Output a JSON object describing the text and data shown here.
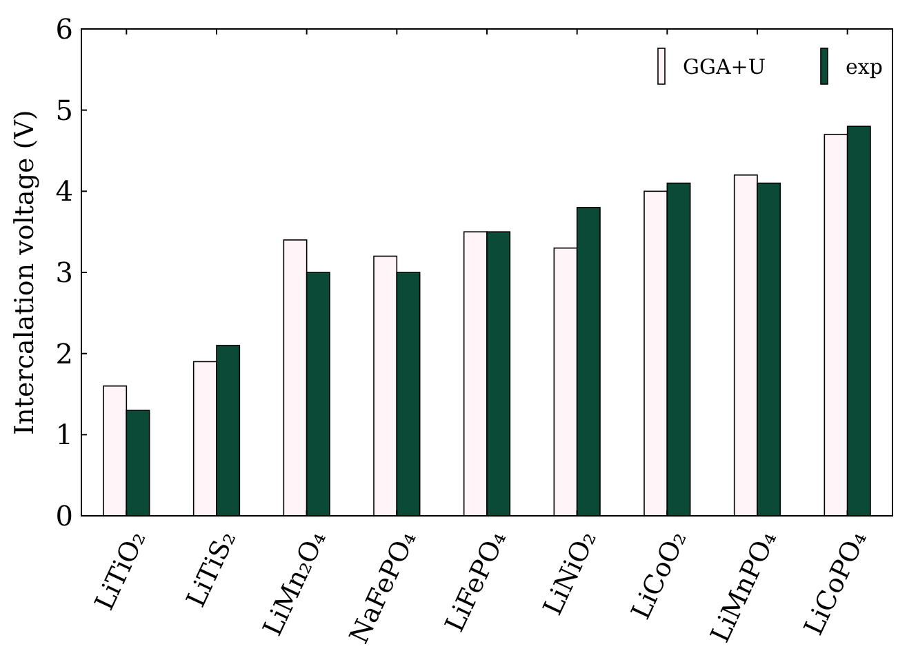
{
  "chart_data": {
    "type": "bar",
    "ylabel": "Intercalation voltage (V)",
    "categories": [
      "LiTiO₂",
      "LiTiS₂",
      "LiMn₂O₄",
      "NaFePO₄",
      "LiFePO₄",
      "LiNiO₂",
      "LiCoO₂",
      "LiMnPO₄",
      "LiCoPO₄"
    ],
    "series": [
      {
        "name": "GGA+U",
        "color": "#fff4f8",
        "values": [
          1.6,
          1.9,
          3.4,
          3.2,
          3.5,
          3.3,
          4.0,
          4.2,
          4.7
        ]
      },
      {
        "name": "exp",
        "color": "#0a4a37",
        "values": [
          1.3,
          2.1,
          3.0,
          3.0,
          3.5,
          3.8,
          4.1,
          4.1,
          4.8
        ]
      }
    ],
    "ylim": [
      0,
      6
    ],
    "yticks": [
      0,
      1,
      2,
      3,
      4,
      5,
      6
    ],
    "grid": false,
    "legend": "top right"
  }
}
